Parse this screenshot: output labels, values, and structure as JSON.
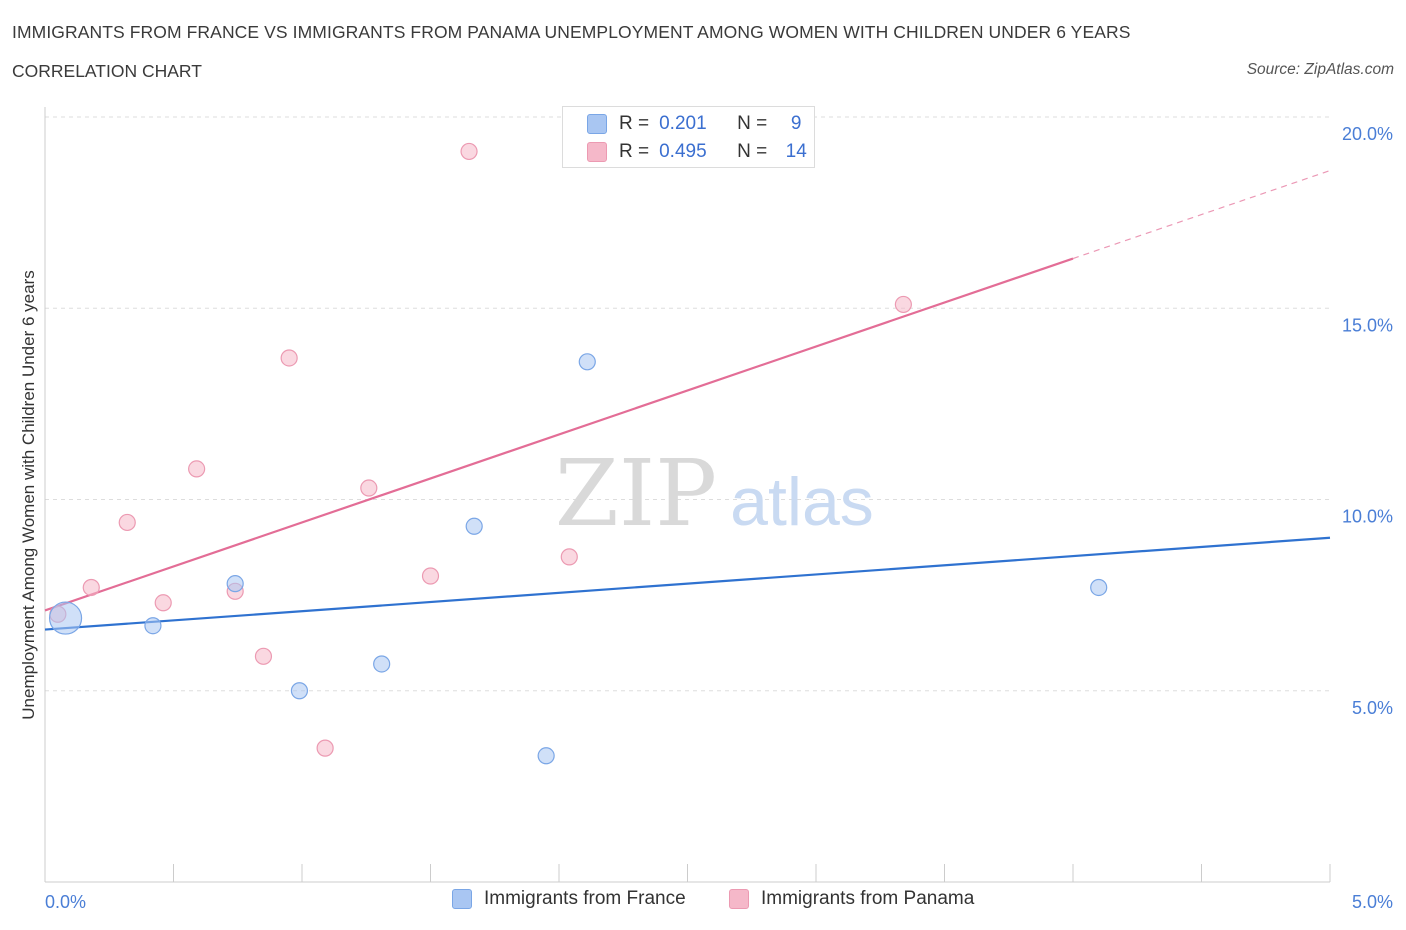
{
  "header": {
    "title": "IMMIGRANTS FROM FRANCE VS IMMIGRANTS FROM PANAMA UNEMPLOYMENT AMONG WOMEN WITH CHILDREN UNDER 6 YEARS",
    "subtitle": "CORRELATION CHART",
    "source": "Source: ZipAtlas.com"
  },
  "watermark": {
    "zip": "ZIP",
    "atlas": "atlas"
  },
  "stats": [
    {
      "r_label": "R =",
      "r_value": "0.201",
      "n_label": "N =",
      "n_value": "9",
      "color": "#a9c6f2"
    },
    {
      "r_label": "R =",
      "r_value": "0.495",
      "n_label": "N =",
      "n_value": "14",
      "color": "#f5b8c9"
    }
  ],
  "legend": [
    {
      "label": "Immigrants from France",
      "color": "#a9c6f2"
    },
    {
      "label": "Immigrants from Panama",
      "color": "#f5b8c9"
    }
  ],
  "colors": {
    "france_fill": "#a9c6f2",
    "france_stroke": "#7aa6e6",
    "france_line": "#2f72d0",
    "panama_fill": "#f5b8c9",
    "panama_stroke": "#ec9ab2",
    "panama_line": "#e36d96",
    "grid": "#dddddd",
    "tick_label": "#4a7ed6"
  },
  "chart_data": {
    "type": "scatter",
    "title": "IMMIGRANTS FROM FRANCE VS IMMIGRANTS FROM PANAMA UNEMPLOYMENT AMONG WOMEN WITH CHILDREN UNDER 6 YEARS",
    "xlabel": "",
    "ylabel": "Unemployment Among Women with Children Under 6 years",
    "xlim": [
      0,
      5
    ],
    "ylim": [
      0,
      20
    ],
    "x_tick_labels": [
      {
        "value": 0,
        "label": "0.0%"
      },
      {
        "value": 5,
        "label": "5.0%"
      }
    ],
    "y_ticks": [
      {
        "value": 5,
        "label": "5.0%"
      },
      {
        "value": 10,
        "label": "10.0%"
      },
      {
        "value": 15,
        "label": "15.0%"
      },
      {
        "value": 20,
        "label": "20.0%"
      }
    ],
    "series": [
      {
        "name": "Immigrants from France",
        "points": [
          {
            "x": 0.08,
            "y": 6.9,
            "size": "large"
          },
          {
            "x": 0.42,
            "y": 6.7
          },
          {
            "x": 0.74,
            "y": 7.8
          },
          {
            "x": 0.99,
            "y": 5.0
          },
          {
            "x": 1.31,
            "y": 5.7
          },
          {
            "x": 1.67,
            "y": 9.3
          },
          {
            "x": 1.95,
            "y": 3.3
          },
          {
            "x": 2.11,
            "y": 13.6
          },
          {
            "x": 4.1,
            "y": 7.7
          }
        ],
        "trend": {
          "x": [
            0,
            5
          ],
          "y": [
            6.6,
            9.0
          ]
        }
      },
      {
        "name": "Immigrants from Panama",
        "points": [
          {
            "x": 0.05,
            "y": 7.0
          },
          {
            "x": 0.18,
            "y": 7.7
          },
          {
            "x": 0.32,
            "y": 9.4
          },
          {
            "x": 0.46,
            "y": 7.3
          },
          {
            "x": 0.59,
            "y": 10.8
          },
          {
            "x": 0.74,
            "y": 7.6
          },
          {
            "x": 0.85,
            "y": 5.9
          },
          {
            "x": 0.95,
            "y": 13.7
          },
          {
            "x": 1.09,
            "y": 3.5
          },
          {
            "x": 1.26,
            "y": 10.3
          },
          {
            "x": 1.5,
            "y": 8.0
          },
          {
            "x": 1.65,
            "y": 19.1
          },
          {
            "x": 2.04,
            "y": 8.5
          },
          {
            "x": 3.34,
            "y": 15.1
          }
        ],
        "trend": {
          "x": [
            0,
            4.0
          ],
          "y": [
            7.1,
            16.3
          ]
        },
        "trend_extension": {
          "x": [
            4.0,
            5.0
          ],
          "y": [
            16.3,
            18.6
          ]
        }
      }
    ]
  }
}
